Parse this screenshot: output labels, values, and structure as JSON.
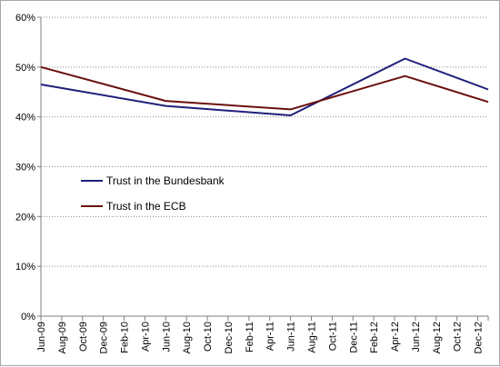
{
  "chart_data": {
    "type": "line",
    "categories": [
      "Jun-09",
      "Aug-09",
      "Oct-09",
      "Dec-09",
      "Feb-10",
      "Apr-10",
      "Jun-10",
      "Aug-10",
      "Oct-10",
      "Dec-10",
      "Feb-11",
      "Apr-11",
      "Jun-11",
      "Aug-11",
      "Oct-11",
      "Dec-11",
      "Feb-12",
      "Apr-12",
      "Jun-12",
      "Aug-12",
      "Oct-12",
      "Dec-12"
    ],
    "ylim": [
      0,
      0.6
    ],
    "yticks": [
      "0%",
      "10%",
      "20%",
      "30%",
      "40%",
      "50%",
      "60%"
    ],
    "grid": true,
    "legend_position": "left-middle",
    "series": [
      {
        "name": "Trust in the Bundesbank",
        "color": "#1f1f7a",
        "points": [
          {
            "x": "Jun-09",
            "y": 0.465
          },
          {
            "x": "Jun-10",
            "y": 0.422
          },
          {
            "x": "Jun-11",
            "y": 0.403
          },
          {
            "x": "May-12",
            "y": 0.517
          },
          {
            "x": "Jan-13",
            "y": 0.455
          }
        ]
      },
      {
        "name": "Trust in the ECB",
        "color": "#6b0f0f",
        "points": [
          {
            "x": "Jun-09",
            "y": 0.5
          },
          {
            "x": "Jun-10",
            "y": 0.432
          },
          {
            "x": "Jun-11",
            "y": 0.415
          },
          {
            "x": "May-12",
            "y": 0.482
          },
          {
            "x": "Jan-13",
            "y": 0.43
          }
        ]
      }
    ]
  }
}
